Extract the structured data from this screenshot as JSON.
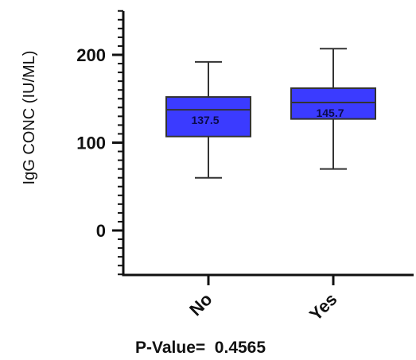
{
  "chart_data": {
    "type": "box",
    "ylabel": "IgG CONC (IU/ML)",
    "xlabel": "",
    "ylim": [
      -50,
      250
    ],
    "yticks": [
      0,
      100,
      200
    ],
    "ytick_labels": [
      "0",
      "100",
      "200"
    ],
    "minor_tick_step": 10,
    "grid": false,
    "categories": [
      "No",
      "Yes"
    ],
    "boxes": [
      {
        "category": "No",
        "min": 60,
        "q1": 107,
        "median": 137.5,
        "q3": 152,
        "max": 192,
        "median_label": "137.5"
      },
      {
        "category": "Yes",
        "min": 70,
        "q1": 127,
        "median": 145.7,
        "q3": 162,
        "max": 207,
        "median_label": "145.7"
      }
    ],
    "box_color": "#3b3bff",
    "line_color": "#333333",
    "axis_color": "#111111"
  },
  "footer": {
    "pvalue_text": "P-Value=  0.4565"
  }
}
